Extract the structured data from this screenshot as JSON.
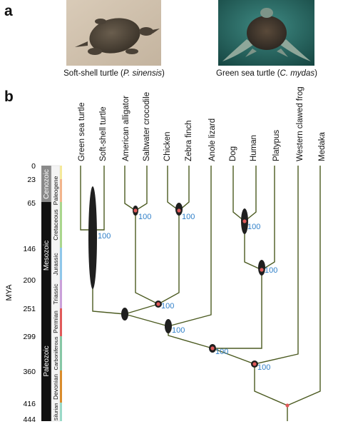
{
  "panel_a": {
    "label": "a",
    "left_photo": {
      "icon": "soft-shell-turtle-photo",
      "caption_prefix": "Soft-shell turtle (",
      "caption_species": "P. sinensis",
      "caption_suffix": ")"
    },
    "right_photo": {
      "icon": "green-sea-turtle-photo",
      "caption_prefix": "Green sea  turtle (",
      "caption_species": "C. mydas",
      "caption_suffix": ")"
    }
  },
  "panel_b": {
    "label": "b",
    "y_axis_label": "MYA",
    "time_ticks": [
      "0",
      "23",
      "65",
      "146",
      "200",
      "251",
      "299",
      "360",
      "416",
      "444"
    ],
    "eras": [
      "Cenozoic",
      "Mesozoic",
      "Paleozoic"
    ],
    "periods": [
      "Paleogene",
      "Cretaceous",
      "Jurassic",
      "Triassic",
      "Permian",
      "Carboniferous",
      "Devonian",
      "Silurian"
    ],
    "taxa": [
      "Green sea turtle",
      "Soft-shell turtle",
      "American alligator",
      "Saltwater crocodile",
      "Chicken",
      "Zebra finch",
      "Anole lizard",
      "Dog",
      "Human",
      "Platypus",
      "Western clawed frog",
      "Medaka"
    ],
    "bootstrap_labels": [
      "100",
      "100",
      "100",
      "100",
      "100",
      "100",
      "100",
      "100",
      "100"
    ],
    "colors": {
      "tree_branch": "#4b5a20",
      "node_ellipse": "#1f1f1f",
      "calibration_dot": "#e05a5a",
      "bootstrap_text": "#2f7fc8",
      "era_bar": "#111111"
    }
  }
}
